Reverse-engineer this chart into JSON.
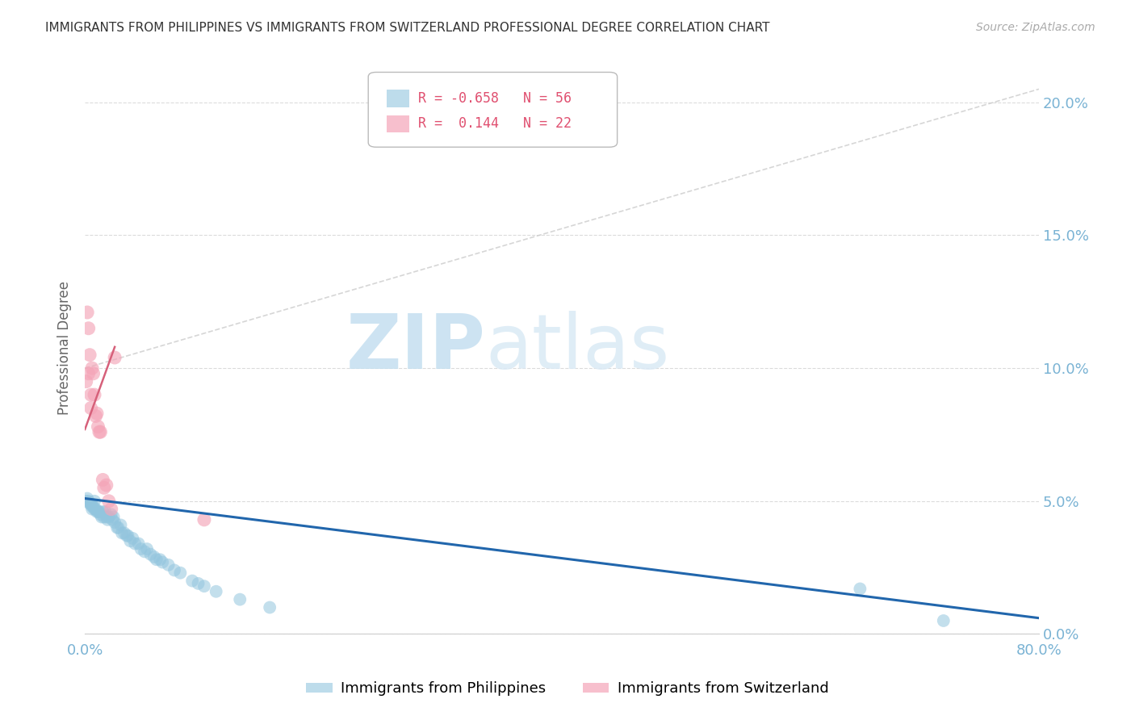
{
  "title": "IMMIGRANTS FROM PHILIPPINES VS IMMIGRANTS FROM SWITZERLAND PROFESSIONAL DEGREE CORRELATION CHART",
  "source": "Source: ZipAtlas.com",
  "ylabel": "Professional Degree",
  "ytick_vals": [
    0.0,
    0.05,
    0.1,
    0.15,
    0.2
  ],
  "ytick_labels": [
    "0.0%",
    "5.0%",
    "10.0%",
    "15.0%",
    "20.0%"
  ],
  "xlim": [
    0.0,
    0.8
  ],
  "ylim": [
    0.0,
    0.215
  ],
  "blue_color": "#92c5de",
  "blue_line_color": "#2166ac",
  "pink_color": "#f4a5b8",
  "pink_line_color": "#d6607a",
  "bg_color": "#ffffff",
  "grid_color": "#cccccc",
  "title_color": "#333333",
  "tick_color": "#7ab3d4",
  "watermark_zip": "ZIP",
  "watermark_atlas": "atlas",
  "philippines_x": [
    0.001,
    0.002,
    0.003,
    0.004,
    0.005,
    0.006,
    0.006,
    0.007,
    0.008,
    0.008,
    0.009,
    0.01,
    0.011,
    0.012,
    0.013,
    0.014,
    0.015,
    0.016,
    0.017,
    0.018,
    0.019,
    0.02,
    0.022,
    0.023,
    0.024,
    0.025,
    0.027,
    0.028,
    0.03,
    0.031,
    0.033,
    0.035,
    0.036,
    0.038,
    0.04,
    0.042,
    0.045,
    0.047,
    0.05,
    0.052,
    0.055,
    0.058,
    0.06,
    0.063,
    0.065,
    0.07,
    0.075,
    0.08,
    0.09,
    0.095,
    0.1,
    0.11,
    0.13,
    0.155,
    0.65,
    0.72
  ],
  "philippines_y": [
    0.05,
    0.051,
    0.05,
    0.049,
    0.049,
    0.048,
    0.047,
    0.048,
    0.047,
    0.05,
    0.047,
    0.046,
    0.046,
    0.046,
    0.045,
    0.044,
    0.046,
    0.044,
    0.046,
    0.044,
    0.043,
    0.044,
    0.045,
    0.043,
    0.044,
    0.042,
    0.04,
    0.04,
    0.041,
    0.038,
    0.038,
    0.037,
    0.037,
    0.035,
    0.036,
    0.034,
    0.034,
    0.032,
    0.031,
    0.032,
    0.03,
    0.029,
    0.028,
    0.028,
    0.027,
    0.026,
    0.024,
    0.023,
    0.02,
    0.019,
    0.018,
    0.016,
    0.013,
    0.01,
    0.017,
    0.005
  ],
  "switzerland_x": [
    0.001,
    0.002,
    0.003,
    0.003,
    0.004,
    0.005,
    0.005,
    0.006,
    0.007,
    0.008,
    0.009,
    0.01,
    0.011,
    0.012,
    0.013,
    0.015,
    0.016,
    0.018,
    0.02,
    0.022,
    0.1,
    0.025
  ],
  "switzerland_y": [
    0.095,
    0.121,
    0.115,
    0.098,
    0.105,
    0.085,
    0.09,
    0.1,
    0.098,
    0.09,
    0.082,
    0.083,
    0.078,
    0.076,
    0.076,
    0.058,
    0.055,
    0.056,
    0.05,
    0.047,
    0.043,
    0.104
  ],
  "blue_trend_x0": 0.0,
  "blue_trend_y0": 0.051,
  "blue_trend_x1": 0.8,
  "blue_trend_y1": 0.006,
  "pink_trend_x0": 0.0,
  "pink_trend_y0": 0.077,
  "pink_trend_x1": 0.025,
  "pink_trend_y1": 0.108
}
